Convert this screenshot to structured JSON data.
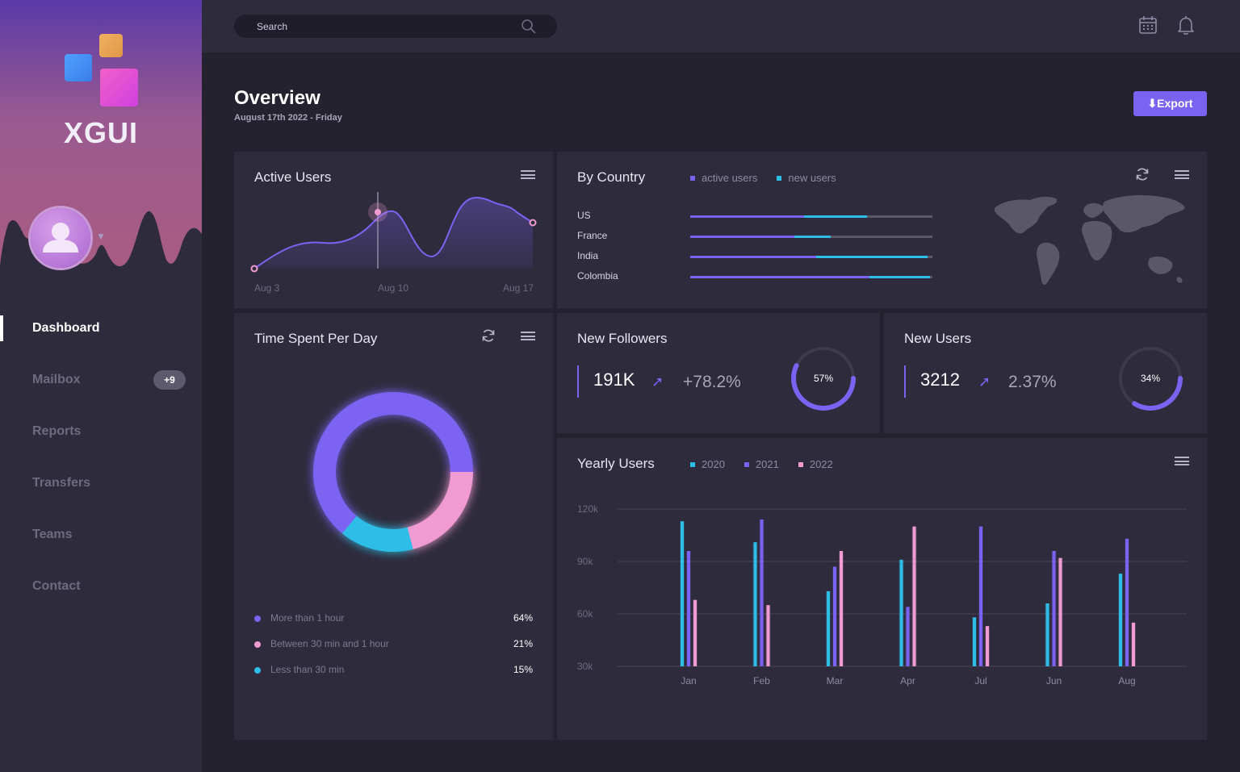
{
  "brand": {
    "name": "XGUI"
  },
  "user": {
    "avatar_icon": "user-avatar"
  },
  "search": {
    "placeholder": "Search"
  },
  "topbar_icons": [
    "calendar-icon",
    "bell-icon"
  ],
  "nav": {
    "items": [
      {
        "label": "Dashboard",
        "active": true
      },
      {
        "label": "Mailbox",
        "badge": "+9"
      },
      {
        "label": "Reports"
      },
      {
        "label": "Transfers"
      },
      {
        "label": "Teams"
      },
      {
        "label": "Contact"
      }
    ]
  },
  "header": {
    "title": "Overview",
    "date": "August 17th 2022 - Friday",
    "export_label": "⬇Export"
  },
  "colors": {
    "accent": "#7b63f2",
    "cyan": "#2ebde6",
    "pink": "#f09bd2"
  },
  "active_users": {
    "title": "Active Users",
    "x_labels": [
      "Aug 3",
      "Aug 10",
      "Aug 17"
    ]
  },
  "by_country": {
    "title": "By Country",
    "legend": [
      "active users",
      "new users"
    ],
    "rows": [
      {
        "country": "US",
        "active": 0.47,
        "new": 0.26
      },
      {
        "country": "France",
        "active": 0.43,
        "new": 0.15
      },
      {
        "country": "India",
        "active": 0.52,
        "new": 0.46
      },
      {
        "country": "Colombia",
        "active": 0.74,
        "new": 0.25
      }
    ]
  },
  "time_spent": {
    "title": "Time Spent Per Day",
    "segments": [
      {
        "label": "More than 1 hour",
        "percent": "64%",
        "value": 64,
        "color": "#7b63f2"
      },
      {
        "label": "Between 30 min and 1 hour",
        "percent": "21%",
        "value": 21,
        "color": "#f09bd2"
      },
      {
        "label": "Less than 30 min",
        "percent": "15%",
        "value": 15,
        "color": "#2ebde6"
      }
    ]
  },
  "new_followers": {
    "title": "New Followers",
    "value": "191K",
    "change": "+78.2%",
    "gauge_label": "57%",
    "gauge_value": 0.57
  },
  "new_users": {
    "title": "New Users",
    "value": "3212",
    "change": "2.37%",
    "gauge_label": "34%",
    "gauge_value": 0.34
  },
  "chart_data": [
    {
      "type": "area",
      "title": "Active Users",
      "x_labels": [
        "Aug 3",
        "Aug 10",
        "Aug 17"
      ],
      "series": [
        {
          "values": [
            10,
            40,
            38,
            70,
            80,
            40,
            33,
            95,
            70
          ]
        }
      ],
      "highlight_label": "Aug 10"
    },
    {
      "type": "bar",
      "title": "Yearly Users",
      "categories": [
        "Jan",
        "Feb",
        "Mar",
        "Apr",
        "Jul",
        "Jun",
        "Aug"
      ],
      "y_ticks": [
        "120k",
        "90k",
        "60k",
        "30k"
      ],
      "ylim": [
        30000,
        120000
      ],
      "series": [
        {
          "name": "2020",
          "color": "#2ebde6",
          "values": [
            113000,
            101000,
            73000,
            91000,
            58000,
            66000,
            83000
          ]
        },
        {
          "name": "2021",
          "color": "#7b63f2",
          "values": [
            96000,
            114000,
            87000,
            64000,
            110000,
            96000,
            103000
          ]
        },
        {
          "name": "2022",
          "color": "#f09bd2",
          "values": [
            68000,
            65000,
            96000,
            110000,
            53000,
            92000,
            55000
          ]
        }
      ]
    }
  ]
}
